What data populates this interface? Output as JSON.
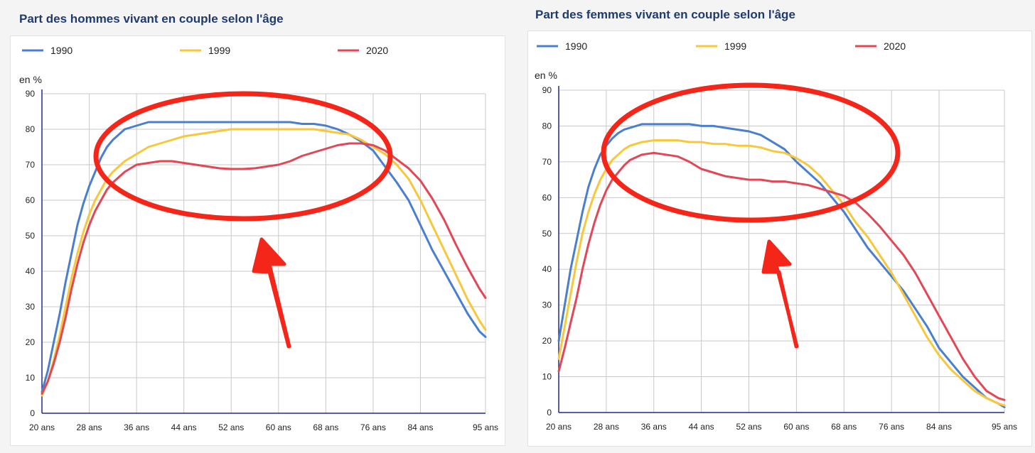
{
  "chart_data": [
    {
      "type": "line",
      "title": "Part des hommes vivant en couple selon l'âge",
      "ylabel": "en %",
      "ylim": [
        0,
        90
      ],
      "yticks": [
        "0",
        "10",
        "20",
        "30",
        "40",
        "50",
        "60",
        "70",
        "80",
        "90"
      ],
      "xlim": [
        20,
        95
      ],
      "xticks": [
        {
          "value": 20,
          "label": "20 ans"
        },
        {
          "value": 28,
          "label": "28 ans"
        },
        {
          "value": 36,
          "label": "36 ans"
        },
        {
          "value": 44,
          "label": "44 ans"
        },
        {
          "value": 52,
          "label": "52 ans"
        },
        {
          "value": 60,
          "label": "60 ans"
        },
        {
          "value": 68,
          "label": "68 ans"
        },
        {
          "value": 76,
          "label": "76 ans"
        },
        {
          "value": 84,
          "label": "84 ans"
        },
        {
          "value": 95,
          "label": "95 ans"
        }
      ],
      "grid": true,
      "legend_position": "top",
      "series": [
        {
          "name": "1990",
          "color": "#4a7fd0",
          "x": [
            20,
            21,
            22,
            23,
            24,
            25,
            26,
            27,
            28,
            29,
            30,
            31,
            32,
            34,
            36,
            38,
            40,
            42,
            44,
            46,
            48,
            50,
            52,
            54,
            56,
            58,
            60,
            62,
            64,
            66,
            68,
            70,
            72,
            74,
            76,
            78,
            80,
            82,
            84,
            86,
            88,
            90,
            92,
            94,
            95
          ],
          "y": [
            6,
            12,
            20,
            28,
            37,
            45,
            53,
            59,
            64,
            68,
            72,
            75,
            77,
            80,
            81,
            82,
            82,
            82,
            82,
            82,
            82,
            82,
            82,
            82,
            82,
            82,
            82,
            82,
            81.5,
            81.5,
            81,
            80,
            78.5,
            76.5,
            74,
            69.5,
            65,
            60,
            53,
            46,
            40,
            34,
            28,
            23,
            21.5
          ]
        },
        {
          "name": "1999",
          "color": "#f7c73c",
          "x": [
            20,
            21,
            22,
            23,
            24,
            25,
            26,
            27,
            28,
            29,
            30,
            31,
            32,
            34,
            36,
            38,
            40,
            42,
            44,
            46,
            48,
            50,
            52,
            54,
            56,
            58,
            60,
            62,
            64,
            66,
            68,
            70,
            72,
            74,
            76,
            78,
            80,
            82,
            84,
            86,
            88,
            90,
            92,
            94,
            95
          ],
          "y": [
            5,
            9,
            15,
            22,
            30,
            38,
            45,
            51,
            56,
            60,
            63,
            66,
            68,
            71,
            73,
            75,
            76,
            77,
            78,
            78.5,
            79,
            79.5,
            80,
            80,
            80,
            80,
            80,
            80,
            80,
            80,
            79.5,
            79,
            78.5,
            77,
            75,
            73,
            70,
            66,
            60,
            53,
            46,
            39,
            32,
            26,
            23.5
          ]
        },
        {
          "name": "2020",
          "color": "#e34756",
          "x": [
            20,
            21,
            22,
            23,
            24,
            25,
            26,
            27,
            28,
            29,
            30,
            31,
            32,
            34,
            36,
            38,
            40,
            42,
            44,
            46,
            48,
            50,
            52,
            54,
            56,
            58,
            60,
            62,
            64,
            66,
            68,
            70,
            72,
            74,
            76,
            78,
            80,
            82,
            84,
            86,
            88,
            90,
            92,
            94,
            95
          ],
          "y": [
            5.5,
            9,
            14,
            20,
            27,
            35,
            42,
            48,
            53,
            57,
            60,
            63,
            65,
            68,
            70,
            70.5,
            71,
            71,
            70.5,
            70,
            69.5,
            69,
            68.8,
            68.8,
            69,
            69.5,
            70,
            71,
            72.5,
            73.5,
            74.5,
            75.5,
            76,
            76,
            75.5,
            74,
            71.5,
            69,
            65.5,
            60.5,
            54.5,
            47.5,
            41,
            35,
            32.5
          ]
        }
      ]
    },
    {
      "type": "line",
      "title": "Part des femmes vivant en couple selon l'âge",
      "ylabel": "en %",
      "ylim": [
        0,
        90
      ],
      "yticks": [
        "0",
        "10",
        "20",
        "30",
        "40",
        "50",
        "60",
        "70",
        "80",
        "90"
      ],
      "xlim": [
        20,
        95
      ],
      "xticks": [
        {
          "value": 20,
          "label": "20 ans"
        },
        {
          "value": 28,
          "label": "28 ans"
        },
        {
          "value": 36,
          "label": "36 ans"
        },
        {
          "value": 44,
          "label": "44 ans"
        },
        {
          "value": 52,
          "label": "52 ans"
        },
        {
          "value": 60,
          "label": "60 ans"
        },
        {
          "value": 68,
          "label": "68 ans"
        },
        {
          "value": 76,
          "label": "76 ans"
        },
        {
          "value": 84,
          "label": "84 ans"
        },
        {
          "value": 95,
          "label": "95 ans"
        }
      ],
      "grid": true,
      "legend_position": "top",
      "series": [
        {
          "name": "1990",
          "color": "#4a7fd0",
          "x": [
            20,
            21,
            22,
            23,
            24,
            25,
            26,
            27,
            28,
            29,
            30,
            31,
            32,
            34,
            36,
            38,
            40,
            42,
            44,
            46,
            48,
            50,
            52,
            54,
            56,
            58,
            60,
            62,
            64,
            66,
            68,
            70,
            72,
            74,
            76,
            78,
            80,
            82,
            84,
            86,
            88,
            90,
            92,
            94,
            95
          ],
          "y": [
            20,
            30,
            40,
            48,
            56,
            63,
            68,
            72,
            74.5,
            76.5,
            78,
            79,
            79.5,
            80.5,
            80.5,
            80.5,
            80.5,
            80.5,
            80,
            80,
            79.5,
            79,
            78.5,
            77.5,
            75.5,
            73.5,
            70,
            67,
            64,
            60,
            56,
            51,
            46,
            42,
            38,
            34,
            29,
            24,
            18,
            14,
            10,
            7,
            4,
            2.5,
            1.5
          ]
        },
        {
          "name": "1999",
          "color": "#f7c73c",
          "x": [
            20,
            21,
            22,
            23,
            24,
            25,
            26,
            27,
            28,
            29,
            30,
            31,
            32,
            34,
            36,
            38,
            40,
            42,
            44,
            46,
            48,
            50,
            52,
            54,
            56,
            58,
            60,
            62,
            64,
            66,
            68,
            70,
            72,
            74,
            76,
            78,
            80,
            82,
            84,
            86,
            88,
            90,
            92,
            94,
            95
          ],
          "y": [
            15,
            24,
            33,
            42,
            50,
            56,
            61,
            65,
            68,
            70.5,
            72,
            73.5,
            74.5,
            75.5,
            76,
            76,
            76,
            75.5,
            75.5,
            75,
            75,
            74.5,
            74.5,
            74,
            73,
            72.5,
            71,
            69,
            66,
            62,
            58,
            53,
            49,
            44,
            39,
            33,
            27,
            21,
            16,
            12,
            9,
            6,
            4,
            2.5,
            2
          ]
        },
        {
          "name": "2020",
          "color": "#e34756",
          "x": [
            20,
            21,
            22,
            23,
            24,
            25,
            26,
            27,
            28,
            29,
            30,
            31,
            32,
            34,
            36,
            38,
            40,
            42,
            44,
            46,
            48,
            50,
            52,
            54,
            56,
            58,
            60,
            62,
            64,
            66,
            68,
            70,
            72,
            74,
            76,
            78,
            80,
            82,
            84,
            86,
            88,
            90,
            92,
            94,
            95
          ],
          "y": [
            11.5,
            18,
            25,
            32,
            40,
            47,
            53,
            58,
            62,
            65,
            67,
            69,
            70.5,
            72,
            72.5,
            72,
            71.5,
            70,
            68,
            67,
            66,
            65.5,
            65,
            65,
            64.5,
            64.5,
            64,
            63.5,
            62.5,
            61.5,
            60.5,
            58.5,
            55.5,
            52,
            48,
            44,
            39,
            33,
            27,
            21,
            15,
            10,
            6,
            4,
            3.5
          ]
        }
      ]
    }
  ]
}
